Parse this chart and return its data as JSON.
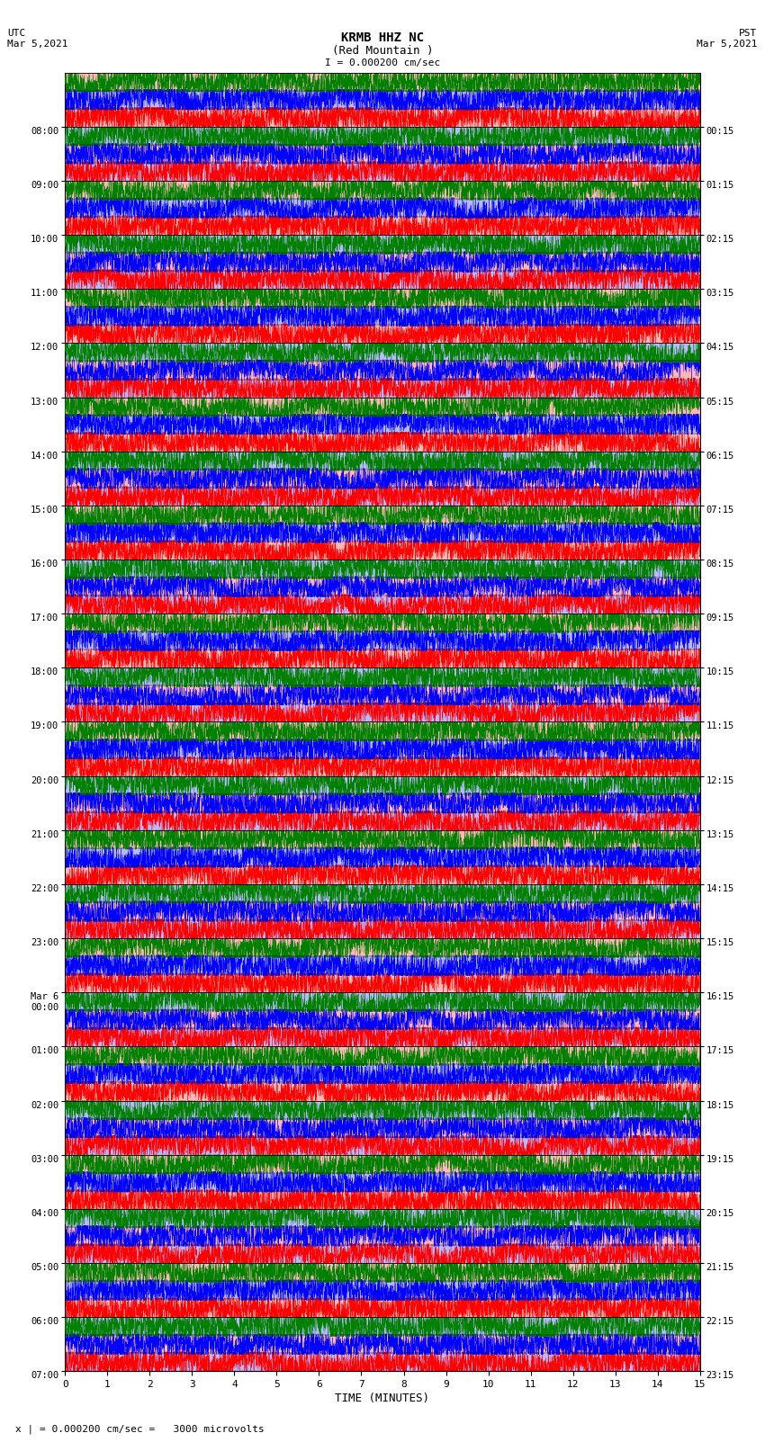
{
  "title_line1": "KRMB HHZ NC",
  "title_line2": "(Red Mountain )",
  "scale_label": "I = 0.000200 cm/sec",
  "utc_label": "UTC\nMar 5,2021",
  "pst_label": "PST\nMar 5,2021",
  "xlabel": "TIME (MINUTES)",
  "footnote": "x | = 0.000200 cm/sec =   3000 microvolts",
  "left_times": [
    "08:00",
    "09:00",
    "10:00",
    "11:00",
    "12:00",
    "13:00",
    "14:00",
    "15:00",
    "16:00",
    "17:00",
    "18:00",
    "19:00",
    "20:00",
    "21:00",
    "22:00",
    "23:00",
    "Mar 6\n00:00",
    "01:00",
    "02:00",
    "03:00",
    "04:00",
    "05:00",
    "06:00",
    "07:00"
  ],
  "right_times": [
    "00:15",
    "01:15",
    "02:15",
    "03:15",
    "04:15",
    "05:15",
    "06:15",
    "07:15",
    "08:15",
    "09:15",
    "10:15",
    "11:15",
    "12:15",
    "13:15",
    "14:15",
    "15:15",
    "16:15",
    "17:15",
    "18:15",
    "19:15",
    "20:15",
    "21:15",
    "22:15",
    "23:15"
  ],
  "n_rows": 24,
  "n_minutes": 15,
  "colors": [
    "red",
    "blue",
    "green"
  ],
  "bg_row_colors_odd": [
    "#ffb0b0",
    "#ffb0b0",
    "#d0d0ff"
  ],
  "bg_row_colors_even": [
    "#d0d0ff",
    "#ffb0b0",
    "#d0d0ff"
  ],
  "fig_width": 8.5,
  "fig_height": 16.13,
  "dpi": 100
}
